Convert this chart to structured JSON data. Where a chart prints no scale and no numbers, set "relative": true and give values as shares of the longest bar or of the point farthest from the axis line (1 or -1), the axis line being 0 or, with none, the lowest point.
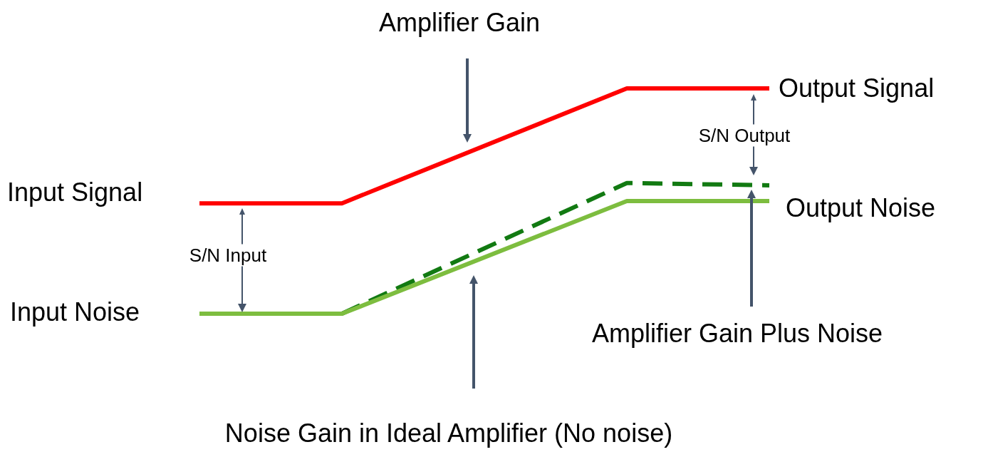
{
  "chart_data": {
    "type": "line",
    "relative": true,
    "legend": false,
    "marker": "none",
    "categories": [
      null,
      null,
      null,
      null,
      null,
      null,
      null,
      null,
      null
    ],
    "series": [
      {
        "color": "#ff0000",
        "values": [
          0.49,
          null,
          0.49,
          null,
          null,
          null,
          1,
          null,
          1
        ]
      },
      {
        "color": "#7dbd3f",
        "values": [
          0,
          null,
          0,
          null,
          null,
          null,
          0.5,
          null,
          0.5
        ]
      },
      {
        "color": "#127a12",
        "line_style": "dashed",
        "values": [
          null,
          null,
          0,
          null,
          null,
          null,
          0.58,
          null,
          0.57
        ]
      }
    ],
    "annotations": [
      "Amplifier Gain",
      "Output Signal",
      "S/N Output",
      "Input Signal",
      "Output Noise",
      "S/N Input",
      "Input Noise",
      "Amplifier Gain Plus Noise",
      "Noise Gain in Ideal Amplifier (No noise)"
    ]
  }
}
